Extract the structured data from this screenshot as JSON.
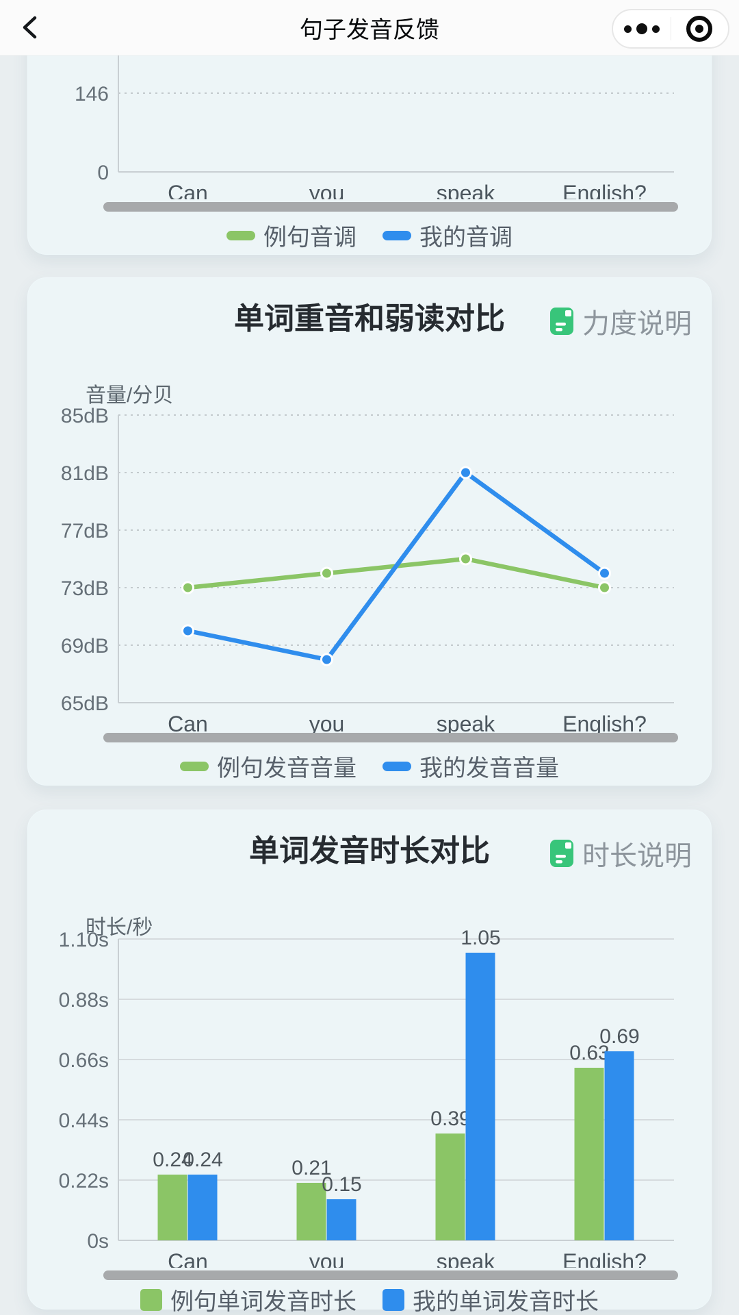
{
  "header": {
    "title": "句子发音反馈"
  },
  "colors": {
    "page_bg": "#e9eef0",
    "card_bg": "#edf5f7",
    "header_bg": "#fbfbfb",
    "sample_green": "#8bc566",
    "mine_blue": "#2f8ded",
    "helper_icon_green": "#38c57a",
    "slider_gray": "#a7a9ab",
    "grid_dotted": "#c3cacd",
    "grid_solid": "#d6dbde",
    "axis_line": "#c9cfd3",
    "tick_text": "#667078",
    "category_text": "#4c565e",
    "bar_label_text": "#4e565c"
  },
  "chart_data": [
    {
      "type": "line",
      "title": "",
      "categories": [
        "Can",
        "you",
        "speak",
        "English?"
      ],
      "y_ticks": [
        "146",
        "0"
      ],
      "ylim": [
        0,
        292
      ],
      "grid": "dotted",
      "legend_position": "bottom",
      "series": [
        {
          "name": "例句音调",
          "color": "#8bc566",
          "values": []
        },
        {
          "name": "我的音调",
          "color": "#2f8ded",
          "values": []
        }
      ]
    },
    {
      "type": "line",
      "title": "单词重音和弱读对比",
      "helper_label": "力度说明",
      "ylabel": "音量/分贝",
      "categories": [
        "Can",
        "you",
        "speak",
        "English?"
      ],
      "y_ticks": [
        "85dB",
        "81dB",
        "77dB",
        "73dB",
        "69dB",
        "65dB"
      ],
      "ylim": [
        65,
        85
      ],
      "grid": "dotted",
      "legend_position": "bottom",
      "series": [
        {
          "name": "例句发音音量",
          "color": "#8bc566",
          "values": [
            73,
            74,
            75,
            73
          ]
        },
        {
          "name": "我的发音音量",
          "color": "#2f8ded",
          "values": [
            70,
            68,
            81,
            74
          ]
        }
      ]
    },
    {
      "type": "bar",
      "title": "单词发音时长对比",
      "helper_label": "时长说明",
      "ylabel": "时长/秒",
      "categories": [
        "Can",
        "you",
        "speak",
        "English?"
      ],
      "y_ticks": [
        "1.10s",
        "0.88s",
        "0.66s",
        "0.44s",
        "0.22s",
        "0s"
      ],
      "ylim": [
        0,
        1.1
      ],
      "grid": "solid",
      "legend_position": "bottom",
      "series": [
        {
          "name": "例句单词发音时长",
          "color": "#8bc566",
          "values": [
            0.24,
            0.21,
            0.39,
            0.63
          ],
          "labels": [
            "0.24",
            "0.21",
            "0.39",
            "0.63"
          ]
        },
        {
          "name": "我的单词发音时长",
          "color": "#2f8ded",
          "values": [
            0.24,
            0.15,
            1.05,
            0.69
          ],
          "labels": [
            "0.24",
            "0.15",
            "1.05",
            "0.69"
          ]
        }
      ]
    }
  ]
}
